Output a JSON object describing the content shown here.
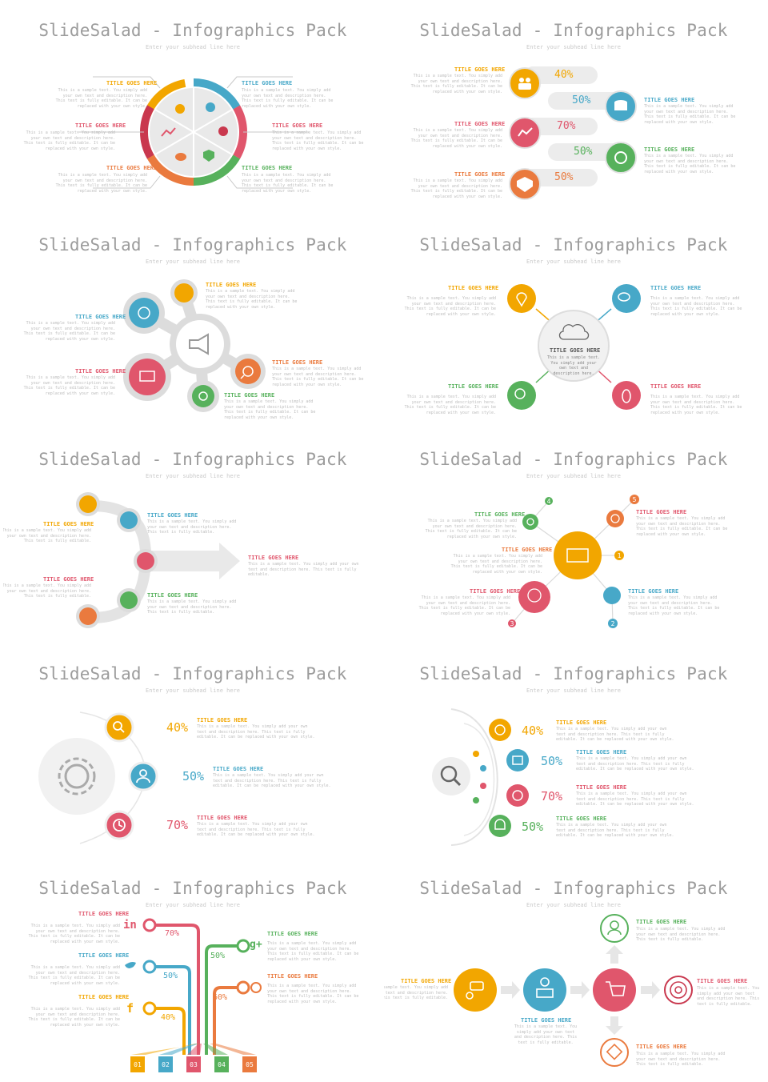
{
  "slide_title": "SlideSalad - Infographics Pack",
  "subhead": "Enter your subhead line here",
  "item_title": "TITLE GOES HERE",
  "body_long": "This is a sample text. You simply add your own text and description here. This text is fully editable. It can be replaced with your own style.",
  "body_short": "This is a sample text. You simply add your own text and description here. This text is fully editable.",
  "body_center": "This is a sample text. You simply add your own text and description here.",
  "colors": {
    "yellow": "#f2a600",
    "blue": "#47a8c8",
    "red": "#e0566c",
    "orange": "#ea7a3e",
    "green": "#57b15c",
    "grey": "#d9d9d9"
  },
  "slide2": {
    "pcts": [
      "40%",
      "50%",
      "70%",
      "50%",
      "50%"
    ]
  },
  "slide5": {
    "pcts": [
      "40%",
      "50%",
      "70%"
    ]
  },
  "slide6": {
    "pcts": [
      "40%",
      "50%",
      "70%",
      "50%"
    ]
  },
  "slide8": {
    "numbers": [
      "1",
      "2",
      "3",
      "4",
      "5"
    ]
  },
  "slide9": {
    "pcts": [
      "70%",
      "50%",
      "40%",
      "50%",
      "60%"
    ],
    "bars": [
      "01",
      "02",
      "03",
      "04",
      "05"
    ]
  },
  "icons": {
    "s1": [
      "people-icon",
      "pie-chart-icon",
      "line-chart-icon",
      "target-icon",
      "coins-icon",
      "shield-dollar-icon"
    ],
    "s2": [
      "people-icon",
      "database-icon",
      "line-chart-icon",
      "globe-search-icon",
      "shield-dollar-icon"
    ],
    "s3": [
      "megaphone-icon",
      "touch-icon",
      "head-gear-icon",
      "monitor-icon",
      "gear-icon",
      "search-icon"
    ],
    "s4": [
      "cloud-network-icon",
      "location-pin-icon",
      "chat-bubbles-icon",
      "magnify-icon",
      "mouse-icon"
    ],
    "s5": [
      "thumbs-up-icon",
      "gears-icon",
      "monitor-chart-icon",
      "handshake-icon",
      "laptop-icon"
    ],
    "s6": [
      "rocket-monitor-icon",
      "gear-icon",
      "magnify-icon",
      "touch-icon",
      "head-gear-icon"
    ],
    "s7": [
      "gear-icon",
      "search-icon",
      "user-icon",
      "clock-icon"
    ],
    "s8": [
      "search-icon",
      "pie-chart-icon",
      "map-icon",
      "globe-icon",
      "bell-icon"
    ],
    "s9": [
      "linkedin-icon",
      "twitter-icon",
      "facebook-icon",
      "google-plus-icon",
      "pinterest-icon"
    ],
    "s10": [
      "chat-person-icon",
      "desk-person-icon",
      "cart-icon",
      "user-icon",
      "target-user-icon",
      "tag-icon"
    ]
  },
  "social": {
    "linkedin": "in",
    "google": "g+",
    "facebook": "f"
  }
}
